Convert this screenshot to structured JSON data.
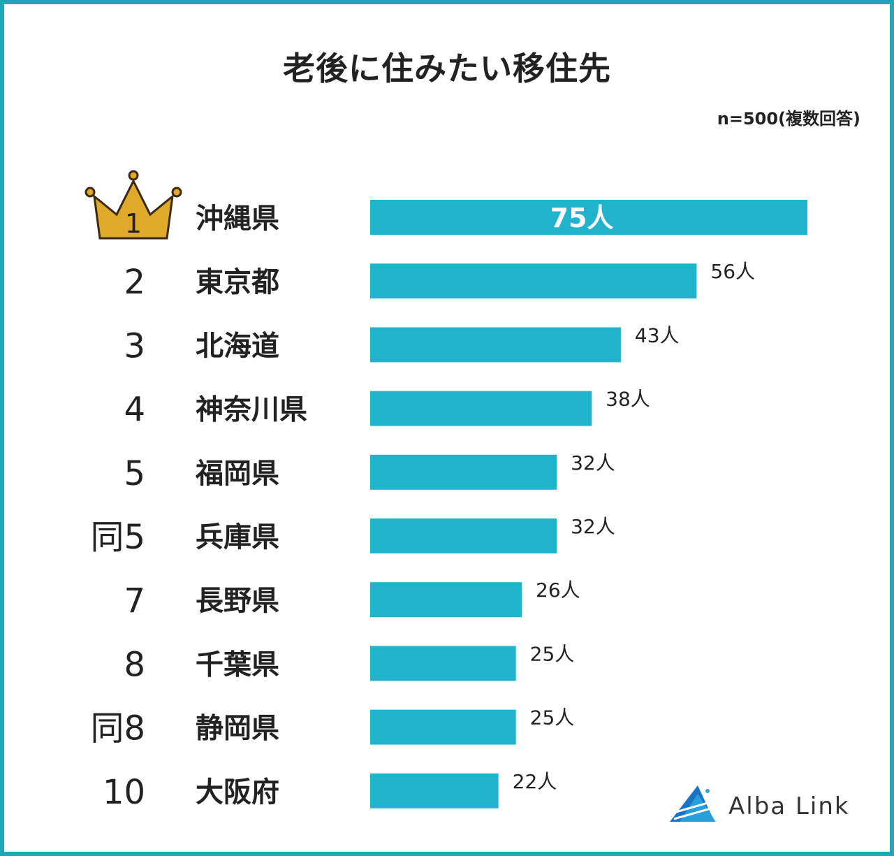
{
  "title": "老後に住みたい移住先",
  "note": "n=500(複数回答)",
  "brand": {
    "name": "Alba Link"
  },
  "colors": {
    "bar": "#22b2cc",
    "frame": "#1ea6b9",
    "crown": "#e0a92a",
    "text": "#222222"
  },
  "chart_data": {
    "type": "bar",
    "orientation": "horizontal",
    "ranks": [
      "1",
      "2",
      "3",
      "4",
      "5",
      "同5",
      "7",
      "8",
      "同8",
      "10"
    ],
    "categories": [
      "沖縄県",
      "東京都",
      "北海道",
      "神奈川県",
      "福岡県",
      "兵庫県",
      "長野県",
      "千葉県",
      "静岡県",
      "大阪府"
    ],
    "values": [
      75,
      56,
      43,
      38,
      32,
      32,
      26,
      25,
      25,
      22
    ],
    "value_labels": [
      "75人",
      "56人",
      "43人",
      "38人",
      "32人",
      "32人",
      "26人",
      "25人",
      "25人",
      "22人"
    ],
    "xlim": [
      0,
      75
    ],
    "grid": false
  }
}
